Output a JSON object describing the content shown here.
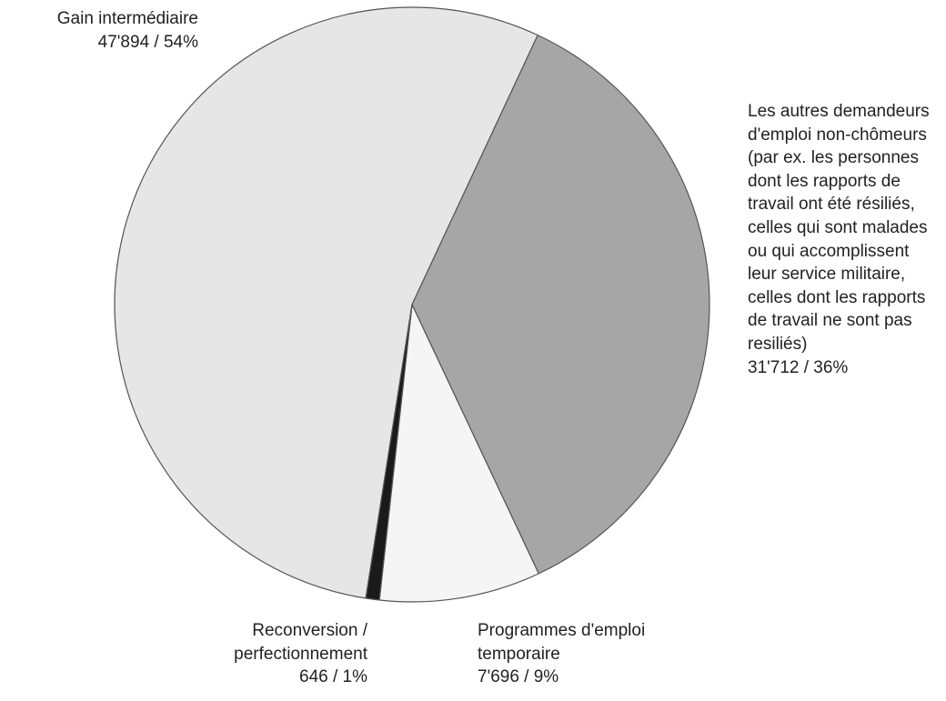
{
  "chart_data": {
    "type": "pie",
    "categories": [
      "Gain intermédiaire",
      "Les autres demandeurs d'emploi non-chômeurs (par ex. les personnes dont les rapports de travail ont été résiliés, celles qui sont malades ou qui accomplissent leur service militaire, celles dont les rapports de travail ne sont pas resiliés)",
      "Programmes d'emploi temporaire",
      "Reconversion / perfectionnement"
    ],
    "values": [
      47894,
      31712,
      7696,
      646
    ],
    "value_labels": [
      "47'894  / 54%",
      "31'712  / 36%",
      "7'696  / 9%",
      "646  / 1%"
    ],
    "colors": [
      "#e6e6e6",
      "#a6a6a6",
      "#f5f5f5",
      "#1a1a1a"
    ]
  }
}
